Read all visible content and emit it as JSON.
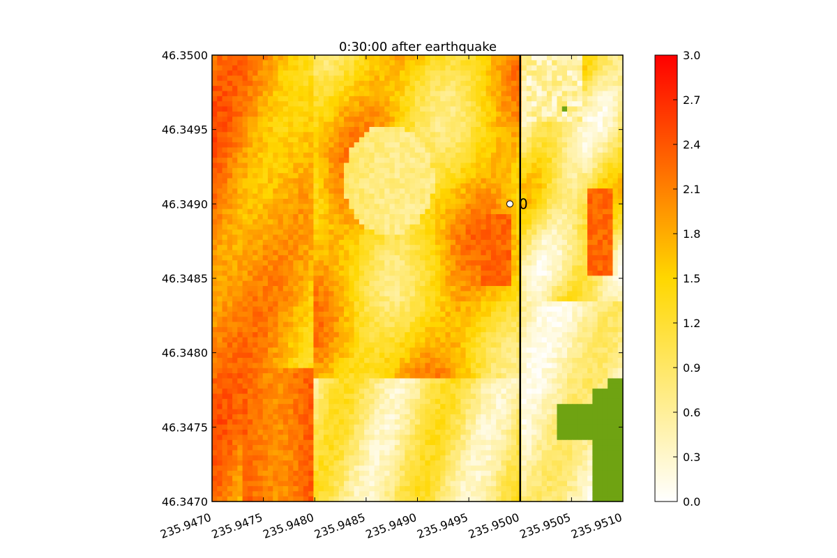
{
  "chart_data": {
    "type": "heatmap",
    "title": "0:30:00 after earthquake",
    "xlabel": "",
    "ylabel": "",
    "xlim": [
      235.947,
      235.951
    ],
    "ylim": [
      46.347,
      46.35
    ],
    "x_ticks": [
      "235.9470",
      "235.9475",
      "235.9480",
      "235.9485",
      "235.9490",
      "235.9495",
      "235.9500",
      "235.9505",
      "235.9510"
    ],
    "y_ticks": [
      "46.3470",
      "46.3475",
      "46.3480",
      "46.3485",
      "46.3490",
      "46.3495",
      "46.3500"
    ],
    "colorbar": {
      "min": 0.0,
      "max": 3.0,
      "ticks": [
        "0.0",
        "0.3",
        "0.6",
        "0.9",
        "1.2",
        "1.5",
        "1.8",
        "2.1",
        "2.4",
        "2.7",
        "3.0"
      ],
      "colors": [
        "#ffffff",
        "#ffd700",
        "#ff0000"
      ]
    },
    "land_color": "#6fa312",
    "vertical_line_x": 235.95,
    "gauges": [
      {
        "label": "0",
        "x": 235.9499,
        "y": 46.349
      }
    ],
    "approx_field_description_free": true
  }
}
